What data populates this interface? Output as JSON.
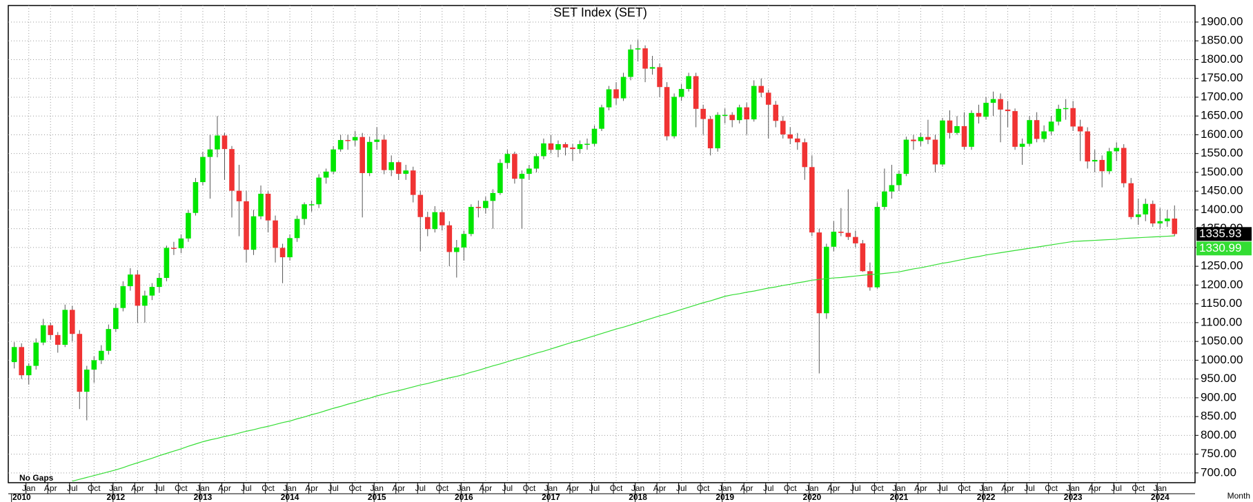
{
  "chart_data": {
    "type": "candlestick",
    "title": "SET  Index  (SET)",
    "note": "No Gaps",
    "period": "Month",
    "up_color": "#00e600",
    "down_color": "#f03333",
    "grid": true,
    "ylim": [
      674,
      1944
    ],
    "yticks": [
      {
        "value": 700,
        "label": "700.00"
      },
      {
        "value": 750,
        "label": "750.00"
      },
      {
        "value": 800,
        "label": "800.00"
      },
      {
        "value": 850,
        "label": "850.00"
      },
      {
        "value": 900,
        "label": "900.00"
      },
      {
        "value": 950,
        "label": "950.00"
      },
      {
        "value": 1000,
        "label": "1000.00"
      },
      {
        "value": 1050,
        "label": "1050.00"
      },
      {
        "value": 1100,
        "label": "1100.00"
      },
      {
        "value": 1150,
        "label": "1150.00"
      },
      {
        "value": 1200,
        "label": "1200.00"
      },
      {
        "value": 1250,
        "label": "1250.00"
      },
      {
        "value": 1300,
        "label": "1300.00"
      },
      {
        "value": 1350,
        "label": "1350.00"
      },
      {
        "value": 1400,
        "label": "1400.00"
      },
      {
        "value": 1450,
        "label": "1450.00"
      },
      {
        "value": 1500,
        "label": "1500.00"
      },
      {
        "value": 1550,
        "label": "1550.00"
      },
      {
        "value": 1600,
        "label": "1600.00"
      },
      {
        "value": 1650,
        "label": "1650.00"
      },
      {
        "value": 1700,
        "label": "1700.00"
      },
      {
        "value": 1750,
        "label": "1750.00"
      },
      {
        "value": 1800,
        "label": "1800.00"
      },
      {
        "value": 1850,
        "label": "1850.00"
      },
      {
        "value": 1900,
        "label": "1900.00"
      }
    ],
    "categories": [
      null,
      null,
      "Jan",
      null,
      null,
      "Apr",
      null,
      null,
      "Jul",
      null,
      null,
      "Oct",
      null,
      null,
      "Jan",
      null,
      null,
      "Apr",
      null,
      null,
      "Jul",
      null,
      null,
      "Oct",
      null,
      null,
      "Jan",
      null,
      null,
      "Apr",
      null,
      null,
      "Jul",
      null,
      null,
      "Oct",
      null,
      null,
      "Jan",
      null,
      null,
      "Apr",
      null,
      null,
      "Jul",
      null,
      null,
      "Oct",
      null,
      null,
      "Jan",
      null,
      null,
      "Apr",
      null,
      null,
      "Jul",
      null,
      null,
      "Oct",
      null,
      null,
      "Jan",
      null,
      null,
      "Apr",
      null,
      null,
      "Jul",
      null,
      null,
      "Oct",
      null,
      null,
      "Jan",
      null,
      null,
      "Apr",
      null,
      null,
      "Jul",
      null,
      null,
      "Oct",
      null,
      null,
      "Jan",
      null,
      null,
      "Apr",
      null,
      null,
      "Jul",
      null,
      null,
      "Oct",
      null,
      null,
      "Jan",
      null,
      null,
      "Apr",
      null,
      null,
      "Jul",
      null,
      null,
      "Oct",
      null,
      null,
      "Jan",
      null,
      null,
      "Apr",
      null,
      null,
      "Jul",
      null,
      null,
      "Oct",
      null,
      null,
      "Jan",
      null,
      null,
      "Apr",
      null,
      null,
      "Jul",
      null,
      null,
      "Oct",
      null,
      null,
      "Jan",
      null,
      null,
      "Apr",
      null,
      null,
      "Jul",
      null,
      null,
      "Oct",
      null,
      null,
      "Jan",
      null,
      null,
      "Apr",
      null,
      null,
      "Jul",
      null,
      null,
      "Oct",
      null,
      null,
      "Jan",
      null,
      null
    ],
    "xticks": [
      {
        "value": 0,
        "label": "2010"
      },
      {
        "value": 14,
        "label": "2012"
      },
      {
        "value": 26,
        "label": "2013"
      },
      {
        "value": 38,
        "label": "2014"
      },
      {
        "value": 50,
        "label": "2015"
      },
      {
        "value": 62,
        "label": "2016"
      },
      {
        "value": 74,
        "label": "2017"
      },
      {
        "value": 86,
        "label": "2018"
      },
      {
        "value": 98,
        "label": "2019"
      },
      {
        "value": 110,
        "label": "2020"
      },
      {
        "value": 122,
        "label": "2021"
      },
      {
        "value": 134,
        "label": "2022"
      },
      {
        "value": 146,
        "label": "2023"
      },
      {
        "value": 158,
        "label": "2024"
      }
    ],
    "ohlc": [
      [
        995,
        1048,
        978,
        1035
      ],
      [
        1035,
        1045,
        950,
        960
      ],
      [
        960,
        992,
        935,
        985
      ],
      [
        985,
        1058,
        975,
        1047
      ],
      [
        1047,
        1110,
        1040,
        1093
      ],
      [
        1093,
        1100,
        1055,
        1067
      ],
      [
        1067,
        1075,
        1020,
        1041
      ],
      [
        1041,
        1148,
        1035,
        1134
      ],
      [
        1134,
        1145,
        1050,
        1070
      ],
      [
        1070,
        1080,
        870,
        916
      ],
      [
        916,
        985,
        840,
        975
      ],
      [
        975,
        1010,
        940,
        1000
      ],
      [
        1000,
        1040,
        990,
        1025
      ],
      [
        1025,
        1095,
        1015,
        1083
      ],
      [
        1083,
        1150,
        1075,
        1139
      ],
      [
        1139,
        1210,
        1130,
        1197
      ],
      [
        1197,
        1245,
        1185,
        1228
      ],
      [
        1228,
        1240,
        1100,
        1145
      ],
      [
        1145,
        1185,
        1100,
        1172
      ],
      [
        1172,
        1205,
        1160,
        1195
      ],
      [
        1195,
        1232,
        1180,
        1219
      ],
      [
        1219,
        1305,
        1210,
        1299
      ],
      [
        1299,
        1315,
        1280,
        1298
      ],
      [
        1298,
        1335,
        1285,
        1324
      ],
      [
        1324,
        1400,
        1315,
        1392
      ],
      [
        1392,
        1485,
        1385,
        1474
      ],
      [
        1474,
        1555,
        1465,
        1541
      ],
      [
        1541,
        1600,
        1430,
        1561
      ],
      [
        1561,
        1650,
        1540,
        1598
      ],
      [
        1598,
        1605,
        1480,
        1562
      ],
      [
        1562,
        1570,
        1380,
        1451
      ],
      [
        1451,
        1520,
        1330,
        1423
      ],
      [
        1423,
        1450,
        1260,
        1294
      ],
      [
        1294,
        1400,
        1280,
        1383
      ],
      [
        1383,
        1465,
        1375,
        1443
      ],
      [
        1443,
        1450,
        1340,
        1372
      ],
      [
        1372,
        1385,
        1260,
        1299
      ],
      [
        1299,
        1310,
        1205,
        1274
      ],
      [
        1274,
        1335,
        1265,
        1325
      ],
      [
        1325,
        1385,
        1315,
        1376
      ],
      [
        1376,
        1420,
        1360,
        1415
      ],
      [
        1415,
        1425,
        1395,
        1415
      ],
      [
        1415,
        1495,
        1405,
        1486
      ],
      [
        1486,
        1510,
        1470,
        1502
      ],
      [
        1502,
        1570,
        1495,
        1561
      ],
      [
        1561,
        1600,
        1555,
        1586
      ],
      [
        1586,
        1600,
        1560,
        1585
      ],
      [
        1585,
        1610,
        1570,
        1594
      ],
      [
        1594,
        1605,
        1380,
        1498
      ],
      [
        1498,
        1595,
        1490,
        1581
      ],
      [
        1581,
        1620,
        1560,
        1587
      ],
      [
        1587,
        1600,
        1495,
        1506
      ],
      [
        1506,
        1545,
        1490,
        1527
      ],
      [
        1527,
        1530,
        1480,
        1496
      ],
      [
        1496,
        1520,
        1480,
        1505
      ],
      [
        1505,
        1515,
        1420,
        1440
      ],
      [
        1440,
        1450,
        1290,
        1381
      ],
      [
        1381,
        1395,
        1330,
        1349
      ],
      [
        1349,
        1410,
        1340,
        1394
      ],
      [
        1394,
        1400,
        1345,
        1359
      ],
      [
        1359,
        1370,
        1250,
        1288
      ],
      [
        1288,
        1320,
        1220,
        1300
      ],
      [
        1300,
        1345,
        1265,
        1336
      ],
      [
        1336,
        1415,
        1330,
        1408
      ],
      [
        1408,
        1425,
        1380,
        1405
      ],
      [
        1405,
        1435,
        1390,
        1424
      ],
      [
        1424,
        1455,
        1350,
        1445
      ],
      [
        1445,
        1535,
        1440,
        1525
      ],
      [
        1525,
        1560,
        1510,
        1549
      ],
      [
        1549,
        1555,
        1470,
        1483
      ],
      [
        1483,
        1505,
        1350,
        1496
      ],
      [
        1496,
        1520,
        1480,
        1510
      ],
      [
        1510,
        1550,
        1500,
        1543
      ],
      [
        1543,
        1590,
        1535,
        1577
      ],
      [
        1577,
        1600,
        1550,
        1560
      ],
      [
        1560,
        1585,
        1540,
        1575
      ],
      [
        1575,
        1580,
        1545,
        1566
      ],
      [
        1566,
        1575,
        1530,
        1562
      ],
      [
        1562,
        1585,
        1550,
        1575
      ],
      [
        1575,
        1590,
        1560,
        1576
      ],
      [
        1576,
        1625,
        1570,
        1616
      ],
      [
        1616,
        1680,
        1610,
        1673
      ],
      [
        1673,
        1730,
        1665,
        1721
      ],
      [
        1721,
        1740,
        1680,
        1697
      ],
      [
        1697,
        1765,
        1690,
        1754
      ],
      [
        1754,
        1840,
        1745,
        1827
      ],
      [
        1827,
        1853,
        1795,
        1830
      ],
      [
        1830,
        1838,
        1740,
        1776
      ],
      [
        1776,
        1810,
        1760,
        1780
      ],
      [
        1780,
        1790,
        1700,
        1727
      ],
      [
        1727,
        1740,
        1585,
        1596
      ],
      [
        1596,
        1710,
        1590,
        1701
      ],
      [
        1701,
        1735,
        1690,
        1722
      ],
      [
        1722,
        1765,
        1715,
        1756
      ],
      [
        1756,
        1765,
        1620,
        1669
      ],
      [
        1669,
        1680,
        1600,
        1642
      ],
      [
        1642,
        1650,
        1545,
        1564
      ],
      [
        1564,
        1660,
        1555,
        1653
      ],
      [
        1653,
        1670,
        1630,
        1653
      ],
      [
        1653,
        1660,
        1620,
        1639
      ],
      [
        1639,
        1680,
        1630,
        1673
      ],
      [
        1673,
        1685,
        1600,
        1641
      ],
      [
        1641,
        1745,
        1635,
        1730
      ],
      [
        1730,
        1750,
        1700,
        1712
      ],
      [
        1712,
        1720,
        1590,
        1680
      ],
      [
        1680,
        1690,
        1620,
        1637
      ],
      [
        1637,
        1650,
        1590,
        1601
      ],
      [
        1601,
        1620,
        1575,
        1590
      ],
      [
        1590,
        1605,
        1560,
        1580
      ],
      [
        1580,
        1590,
        1480,
        1514
      ],
      [
        1514,
        1545,
        1330,
        1340
      ],
      [
        1340,
        1350,
        965,
        1125
      ],
      [
        1125,
        1310,
        1110,
        1302
      ],
      [
        1302,
        1370,
        1290,
        1342
      ],
      [
        1342,
        1405,
        1330,
        1339
      ],
      [
        1339,
        1455,
        1320,
        1328
      ],
      [
        1328,
        1345,
        1300,
        1311
      ],
      [
        1311,
        1320,
        1235,
        1237
      ],
      [
        1237,
        1260,
        1185,
        1194
      ],
      [
        1194,
        1420,
        1190,
        1408
      ],
      [
        1408,
        1510,
        1400,
        1449
      ],
      [
        1449,
        1520,
        1430,
        1466
      ],
      [
        1466,
        1505,
        1450,
        1496
      ],
      [
        1496,
        1595,
        1490,
        1587
      ],
      [
        1587,
        1600,
        1560,
        1583
      ],
      [
        1583,
        1605,
        1570,
        1594
      ],
      [
        1594,
        1640,
        1575,
        1587
      ],
      [
        1587,
        1600,
        1500,
        1521
      ],
      [
        1521,
        1645,
        1515,
        1638
      ],
      [
        1638,
        1665,
        1590,
        1605
      ],
      [
        1605,
        1650,
        1600,
        1623
      ],
      [
        1623,
        1660,
        1560,
        1568
      ],
      [
        1568,
        1665,
        1560,
        1658
      ],
      [
        1658,
        1680,
        1630,
        1648
      ],
      [
        1648,
        1700,
        1640,
        1685
      ],
      [
        1685,
        1715,
        1650,
        1695
      ],
      [
        1695,
        1710,
        1580,
        1667
      ],
      [
        1667,
        1690,
        1620,
        1663
      ],
      [
        1663,
        1670,
        1560,
        1568
      ],
      [
        1568,
        1590,
        1520,
        1576
      ],
      [
        1576,
        1650,
        1570,
        1639
      ],
      [
        1639,
        1660,
        1580,
        1589
      ],
      [
        1589,
        1625,
        1580,
        1609
      ],
      [
        1609,
        1650,
        1600,
        1635
      ],
      [
        1635,
        1680,
        1625,
        1669
      ],
      [
        1669,
        1695,
        1640,
        1671
      ],
      [
        1671,
        1690,
        1610,
        1622
      ],
      [
        1622,
        1640,
        1530,
        1609
      ],
      [
        1609,
        1620,
        1510,
        1529
      ],
      [
        1529,
        1560,
        1500,
        1533
      ],
      [
        1533,
        1545,
        1460,
        1503
      ],
      [
        1503,
        1565,
        1495,
        1556
      ],
      [
        1556,
        1580,
        1530,
        1565
      ],
      [
        1565,
        1575,
        1460,
        1471
      ],
      [
        1471,
        1485,
        1375,
        1381
      ],
      [
        1381,
        1430,
        1360,
        1388
      ],
      [
        1388,
        1430,
        1370,
        1416
      ],
      [
        1416,
        1425,
        1355,
        1364
      ],
      [
        1364,
        1405,
        1350,
        1370
      ],
      [
        1370,
        1400,
        1355,
        1377
      ],
      [
        1377,
        1412,
        1330,
        1335.93
      ]
    ],
    "ma": {
      "color": "#33dd33",
      "values": [
        null,
        null,
        null,
        null,
        null,
        null,
        null,
        null,
        678,
        683,
        688,
        693,
        698,
        703,
        708,
        714,
        721,
        727,
        733,
        739,
        746,
        752,
        758,
        764,
        771,
        777,
        783,
        788,
        792,
        797,
        801,
        806,
        811,
        815,
        820,
        824,
        829,
        834,
        838,
        844,
        849,
        855,
        860,
        866,
        872,
        877,
        883,
        888,
        894,
        899,
        905,
        910,
        915,
        919,
        924,
        929,
        934,
        938,
        943,
        948,
        953,
        957,
        962,
        968,
        973,
        979,
        985,
        990,
        996,
        1002,
        1007,
        1013,
        1019,
        1024,
        1030,
        1036,
        1042,
        1048,
        1053,
        1059,
        1065,
        1071,
        1077,
        1083,
        1088,
        1094,
        1100,
        1106,
        1112,
        1118,
        1123,
        1129,
        1135,
        1141,
        1147,
        1153,
        1158,
        1164,
        1170,
        1174,
        1177,
        1181,
        1184,
        1188,
        1192,
        1195,
        1199,
        1202,
        1206,
        1209,
        1213,
        1215,
        1217,
        1219,
        1220,
        1222,
        1224,
        1226,
        1228,
        1229,
        1231,
        1233,
        1235,
        1239,
        1243,
        1246,
        1250,
        1254,
        1258,
        1261,
        1265,
        1269,
        1273,
        1276,
        1280,
        1283,
        1286,
        1289,
        1292,
        1295,
        1298,
        1301,
        1304,
        1307,
        1310,
        1313,
        1316,
        1317,
        1318,
        1319,
        1320,
        1321,
        1322,
        1324,
        1325,
        1326,
        1327,
        1328,
        1329,
        1330,
        1330.99
      ]
    }
  }
}
